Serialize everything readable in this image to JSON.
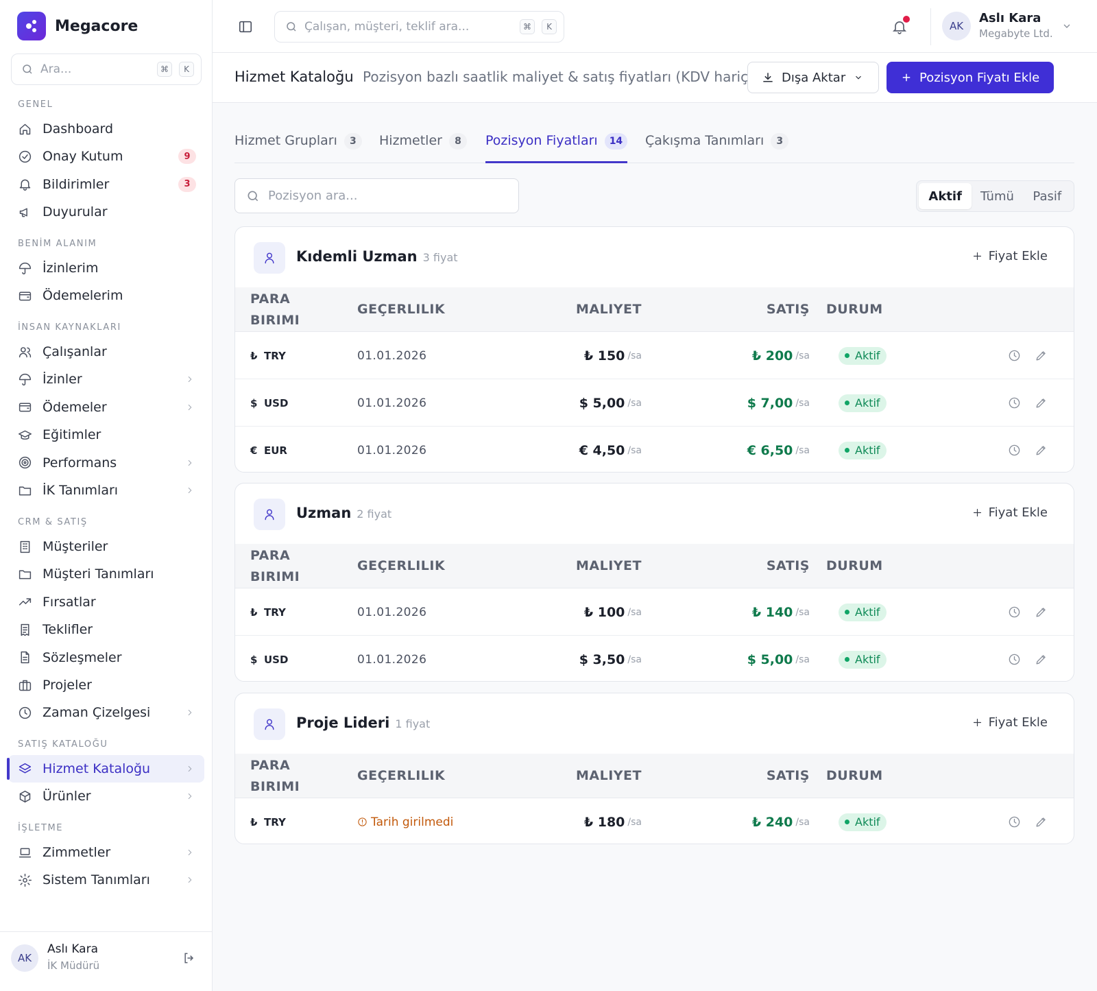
{
  "brand": {
    "name": "Megacore"
  },
  "sidebar": {
    "search": {
      "placeholder": "Ara...",
      "kbd1": "⌘",
      "kbd2": "K"
    },
    "sections": [
      {
        "label": "GENEL",
        "items": [
          {
            "label": "Dashboard",
            "icon": "home-icon"
          },
          {
            "label": "Onay Kutum",
            "icon": "check-circle-icon",
            "badge": "9"
          },
          {
            "label": "Bildirimler",
            "icon": "bell-icon",
            "badge": "3"
          },
          {
            "label": "Duyurular",
            "icon": "megaphone-icon"
          }
        ]
      },
      {
        "label": "BENİM ALANIM",
        "items": [
          {
            "label": "İzinlerim",
            "icon": "umbrella-icon"
          },
          {
            "label": "Ödemelerim",
            "icon": "wallet-icon"
          }
        ]
      },
      {
        "label": "İNSAN KAYNAKLARI",
        "items": [
          {
            "label": "Çalışanlar",
            "icon": "users-icon"
          },
          {
            "label": "İzinler",
            "icon": "umbrella-icon",
            "chevron": true
          },
          {
            "label": "Ödemeler",
            "icon": "wallet-icon",
            "chevron": true
          },
          {
            "label": "Eğitimler",
            "icon": "graduation-cap-icon"
          },
          {
            "label": "Performans",
            "icon": "target-icon",
            "chevron": true
          },
          {
            "label": "İK Tanımları",
            "icon": "folder-icon",
            "chevron": true
          }
        ]
      },
      {
        "label": "CRM & SATIŞ",
        "items": [
          {
            "label": "Müşteriler",
            "icon": "building-icon"
          },
          {
            "label": "Müşteri Tanımları",
            "icon": "folder-icon"
          },
          {
            "label": "Fırsatlar",
            "icon": "trending-up-icon"
          },
          {
            "label": "Teklifler",
            "icon": "receipt-icon"
          },
          {
            "label": "Sözleşmeler",
            "icon": "file-text-icon"
          },
          {
            "label": "Projeler",
            "icon": "briefcase-icon"
          },
          {
            "label": "Zaman Çizelgesi",
            "icon": "clock-icon",
            "chevron": true
          }
        ]
      },
      {
        "label": "SATIŞ KATALOĞU",
        "items": [
          {
            "label": "Hizmet Kataloğu",
            "icon": "layers-icon",
            "chevron": true,
            "active": true
          },
          {
            "label": "Ürünler",
            "icon": "package-icon",
            "chevron": true
          }
        ]
      },
      {
        "label": "İŞLETME",
        "items": [
          {
            "label": "Zimmetler",
            "icon": "laptop-icon",
            "chevron": true
          },
          {
            "label": "Sistem Tanımları",
            "icon": "settings-icon",
            "chevron": true
          }
        ]
      }
    ],
    "footer_user": {
      "initials": "AK",
      "name": "Aslı Kara",
      "role": "İK Müdürü"
    }
  },
  "topbar": {
    "search_placeholder": "Çalışan, müşteri, teklif ara...",
    "kbd1": "⌘",
    "kbd2": "K",
    "user": {
      "initials": "AK",
      "name": "Aslı Kara",
      "company": "Megabyte Ltd."
    },
    "notification_dot_color": "#e11d48"
  },
  "page": {
    "title": "Hizmet Kataloğu",
    "subtitle": "Pozisyon bazlı saatlik maliyet & satış fiyatları (KDV hariç)",
    "export_label": "Dışa Aktar",
    "add_label": "Pozisyon Fiyatı Ekle"
  },
  "tabs": [
    {
      "label": "Hizmet Grupları",
      "count": "3"
    },
    {
      "label": "Hizmetler",
      "count": "8"
    },
    {
      "label": "Pozisyon Fiyatları",
      "count": "14",
      "active": true
    },
    {
      "label": "Çakışma Tanımları",
      "count": "3"
    }
  ],
  "filter": {
    "search_placeholder": "Pozisyon ara...",
    "segments": [
      "Aktif",
      "Tümü",
      "Pasif"
    ],
    "active_segment": "Aktif"
  },
  "table_headers": {
    "currency_line1": "PARA",
    "currency_line2": "BIRIMI",
    "validity": "GEÇERLILIK",
    "cost": "MALIYET",
    "sale": "SATIŞ",
    "status": "DURUM"
  },
  "add_price_label": "Fiyat Ekle",
  "unit_label": "/sa",
  "positions": [
    {
      "name": "Kıdemli Uzman",
      "count_label": "3 fiyat",
      "rows": [
        {
          "sym": "₺",
          "currency": "TRY",
          "validity": "01.01.2026",
          "cost": "₺ 150",
          "sale": "₺ 200",
          "status": "Aktif"
        },
        {
          "sym": "$",
          "currency": "USD",
          "validity": "01.01.2026",
          "cost": "$ 5,00",
          "sale": "$ 7,00",
          "status": "Aktif"
        },
        {
          "sym": "€",
          "currency": "EUR",
          "validity": "01.01.2026",
          "cost": "€ 4,50",
          "sale": "€ 6,50",
          "status": "Aktif"
        }
      ]
    },
    {
      "name": "Uzman",
      "count_label": "2 fiyat",
      "rows": [
        {
          "sym": "₺",
          "currency": "TRY",
          "validity": "01.01.2026",
          "cost": "₺ 100",
          "sale": "₺ 140",
          "status": "Aktif"
        },
        {
          "sym": "$",
          "currency": "USD",
          "validity": "01.01.2026",
          "cost": "$ 3,50",
          "sale": "$ 5,00",
          "status": "Aktif"
        }
      ]
    },
    {
      "name": "Proje Lideri",
      "count_label": "1 fiyat",
      "rows": [
        {
          "sym": "₺",
          "currency": "TRY",
          "validity": "Tarih girilmedi",
          "validity_warning": true,
          "cost": "₺ 180",
          "sale": "₺ 240",
          "status": "Aktif"
        }
      ]
    }
  ]
}
